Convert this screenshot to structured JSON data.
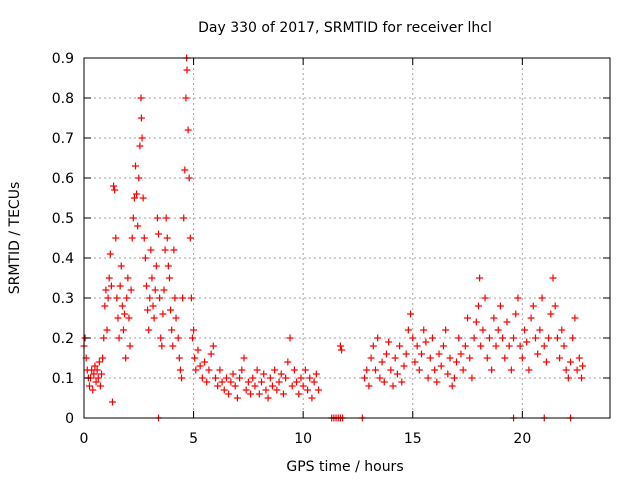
{
  "chart_data": {
    "type": "scatter",
    "title": "Day 330 of 2017, SRMTID for receiver lhcl",
    "xlabel": "GPS time / hours",
    "ylabel": "SRMTID / TECUs",
    "xlim": [
      0,
      24
    ],
    "ylim": [
      0,
      0.9
    ],
    "x_ticks": [
      0,
      5,
      10,
      15,
      20
    ],
    "x_tick_labels": [
      "0",
      "5",
      "10",
      "15",
      "20"
    ],
    "y_ticks": [
      0,
      0.1,
      0.2,
      0.3,
      0.4,
      0.5,
      0.6,
      0.7,
      0.8,
      0.9
    ],
    "y_tick_labels": [
      "0",
      "0.1",
      "0.2",
      "0.3",
      "0.4",
      "0.5",
      "0.6",
      "0.7",
      "0.8",
      "0.9"
    ],
    "grid": true,
    "marker": "+",
    "colors": {
      "marker": "#ff0000",
      "grid": "#a0a0a0",
      "axis": "#000000"
    },
    "series": [
      {
        "name": "SRMTID",
        "points": [
          [
            0.0,
            0.18
          ],
          [
            0.05,
            0.2
          ],
          [
            0.1,
            0.15
          ],
          [
            0.15,
            0.12
          ],
          [
            0.2,
            0.1
          ],
          [
            0.25,
            0.08
          ],
          [
            0.3,
            0.1
          ],
          [
            0.35,
            0.12
          ],
          [
            0.4,
            0.07
          ],
          [
            0.45,
            0.11
          ],
          [
            0.5,
            0.13
          ],
          [
            0.55,
            0.09
          ],
          [
            0.6,
            0.12
          ],
          [
            0.65,
            0.1
          ],
          [
            0.7,
            0.14
          ],
          [
            0.75,
            0.08
          ],
          [
            0.8,
            0.11
          ],
          [
            0.85,
            0.15
          ],
          [
            0.9,
            0.2
          ],
          [
            0.95,
            0.28
          ],
          [
            1.0,
            0.32
          ],
          [
            1.05,
            0.22
          ],
          [
            1.1,
            0.3
          ],
          [
            1.15,
            0.35
          ],
          [
            1.2,
            0.41
          ],
          [
            1.25,
            0.33
          ],
          [
            1.3,
            0.04
          ],
          [
            1.35,
            0.58
          ],
          [
            1.4,
            0.57
          ],
          [
            1.45,
            0.45
          ],
          [
            1.5,
            0.3
          ],
          [
            1.55,
            0.25
          ],
          [
            1.6,
            0.2
          ],
          [
            1.65,
            0.33
          ],
          [
            1.7,
            0.38
          ],
          [
            1.75,
            0.28
          ],
          [
            1.8,
            0.22
          ],
          [
            1.85,
            0.26
          ],
          [
            1.9,
            0.15
          ],
          [
            1.95,
            0.3
          ],
          [
            2.0,
            0.35
          ],
          [
            2.05,
            0.25
          ],
          [
            2.1,
            0.18
          ],
          [
            2.15,
            0.32
          ],
          [
            2.2,
            0.45
          ],
          [
            2.25,
            0.5
          ],
          [
            2.3,
            0.55
          ],
          [
            2.35,
            0.63
          ],
          [
            2.4,
            0.56
          ],
          [
            2.45,
            0.48
          ],
          [
            2.5,
            0.6
          ],
          [
            2.55,
            0.68
          ],
          [
            2.6,
            0.8
          ],
          [
            2.62,
            0.75
          ],
          [
            2.65,
            0.7
          ],
          [
            2.7,
            0.55
          ],
          [
            2.75,
            0.45
          ],
          [
            2.8,
            0.4
          ],
          [
            2.85,
            0.33
          ],
          [
            2.9,
            0.27
          ],
          [
            2.95,
            0.22
          ],
          [
            3.0,
            0.3
          ],
          [
            3.05,
            0.42
          ],
          [
            3.1,
            0.35
          ],
          [
            3.15,
            0.28
          ],
          [
            3.2,
            0.25
          ],
          [
            3.25,
            0.32
          ],
          [
            3.3,
            0.38
          ],
          [
            3.35,
            0.5
          ],
          [
            3.4,
            0.46
          ],
          [
            3.45,
            0.3
          ],
          [
            3.5,
            0.2
          ],
          [
            3.55,
            0.18
          ],
          [
            3.6,
            0.26
          ],
          [
            3.65,
            0.32
          ],
          [
            3.7,
            0.42
          ],
          [
            3.75,
            0.5
          ],
          [
            3.8,
            0.45
          ],
          [
            3.85,
            0.38
          ],
          [
            3.9,
            0.35
          ],
          [
            3.95,
            0.27
          ],
          [
            4.0,
            0.22
          ],
          [
            4.05,
            0.18
          ],
          [
            4.1,
            0.42
          ],
          [
            4.15,
            0.3
          ],
          [
            4.2,
            0.25
          ],
          [
            4.3,
            0.2
          ],
          [
            4.35,
            0.15
          ],
          [
            4.4,
            0.12
          ],
          [
            4.45,
            0.1
          ],
          [
            4.5,
            0.3
          ],
          [
            4.55,
            0.5
          ],
          [
            4.6,
            0.62
          ],
          [
            4.65,
            0.8
          ],
          [
            4.68,
            0.9
          ],
          [
            4.7,
            0.87
          ],
          [
            4.75,
            0.72
          ],
          [
            4.8,
            0.6
          ],
          [
            4.85,
            0.45
          ],
          [
            4.9,
            0.3
          ],
          [
            4.95,
            0.2
          ],
          [
            5.0,
            0.22
          ],
          [
            5.05,
            0.15
          ],
          [
            5.1,
            0.12
          ],
          [
            5.2,
            0.17
          ],
          [
            5.3,
            0.13
          ],
          [
            5.4,
            0.1
          ],
          [
            5.5,
            0.14
          ],
          [
            5.6,
            0.09
          ],
          [
            5.7,
            0.12
          ],
          [
            5.8,
            0.16
          ],
          [
            5.9,
            0.18
          ],
          [
            6.0,
            0.1
          ],
          [
            6.1,
            0.08
          ],
          [
            6.2,
            0.12
          ],
          [
            6.3,
            0.09
          ],
          [
            6.4,
            0.07
          ],
          [
            6.5,
            0.1
          ],
          [
            6.6,
            0.06
          ],
          [
            6.7,
            0.09
          ],
          [
            6.8,
            0.11
          ],
          [
            6.9,
            0.08
          ],
          [
            7.0,
            0.05
          ],
          [
            7.1,
            0.1
          ],
          [
            7.2,
            0.12
          ],
          [
            7.3,
            0.15
          ],
          [
            7.4,
            0.07
          ],
          [
            7.5,
            0.09
          ],
          [
            7.6,
            0.06
          ],
          [
            7.7,
            0.1
          ],
          [
            7.8,
            0.08
          ],
          [
            7.9,
            0.12
          ],
          [
            8.0,
            0.06
          ],
          [
            8.1,
            0.09
          ],
          [
            8.2,
            0.11
          ],
          [
            8.3,
            0.07
          ],
          [
            8.4,
            0.05
          ],
          [
            8.5,
            0.1
          ],
          [
            8.6,
            0.08
          ],
          [
            8.7,
            0.12
          ],
          [
            8.8,
            0.07
          ],
          [
            8.9,
            0.09
          ],
          [
            9.0,
            0.11
          ],
          [
            9.1,
            0.06
          ],
          [
            9.2,
            0.1
          ],
          [
            9.3,
            0.14
          ],
          [
            9.4,
            0.2
          ],
          [
            9.5,
            0.08
          ],
          [
            9.6,
            0.12
          ],
          [
            9.7,
            0.09
          ],
          [
            9.8,
            0.06
          ],
          [
            9.9,
            0.1
          ],
          [
            10.0,
            0.08
          ],
          [
            10.1,
            0.12
          ],
          [
            10.2,
            0.07
          ],
          [
            10.3,
            0.1
          ],
          [
            10.4,
            0.05
          ],
          [
            10.5,
            0.09
          ],
          [
            10.6,
            0.11
          ],
          [
            10.7,
            0.07
          ],
          [
            11.7,
            0.18
          ],
          [
            11.75,
            0.17
          ],
          [
            12.8,
            0.1
          ],
          [
            12.9,
            0.12
          ],
          [
            13.0,
            0.08
          ],
          [
            13.1,
            0.15
          ],
          [
            13.2,
            0.18
          ],
          [
            13.3,
            0.12
          ],
          [
            13.4,
            0.2
          ],
          [
            13.5,
            0.1
          ],
          [
            13.6,
            0.14
          ],
          [
            13.7,
            0.09
          ],
          [
            13.8,
            0.16
          ],
          [
            13.9,
            0.19
          ],
          [
            14.0,
            0.12
          ],
          [
            14.1,
            0.08
          ],
          [
            14.2,
            0.15
          ],
          [
            14.3,
            0.11
          ],
          [
            14.4,
            0.18
          ],
          [
            14.5,
            0.09
          ],
          [
            14.6,
            0.13
          ],
          [
            14.7,
            0.16
          ],
          [
            14.8,
            0.22
          ],
          [
            14.9,
            0.26
          ],
          [
            15.0,
            0.2
          ],
          [
            15.1,
            0.14
          ],
          [
            15.2,
            0.18
          ],
          [
            15.3,
            0.12
          ],
          [
            15.4,
            0.16
          ],
          [
            15.5,
            0.22
          ],
          [
            15.6,
            0.19
          ],
          [
            15.7,
            0.1
          ],
          [
            15.8,
            0.15
          ],
          [
            15.9,
            0.2
          ],
          [
            16.0,
            0.12
          ],
          [
            16.1,
            0.09
          ],
          [
            16.2,
            0.16
          ],
          [
            16.3,
            0.13
          ],
          [
            16.4,
            0.18
          ],
          [
            16.5,
            0.22
          ],
          [
            16.6,
            0.11
          ],
          [
            16.7,
            0.15
          ],
          [
            16.8,
            0.08
          ],
          [
            16.9,
            0.1
          ],
          [
            17.0,
            0.14
          ],
          [
            17.1,
            0.2
          ],
          [
            17.2,
            0.16
          ],
          [
            17.3,
            0.12
          ],
          [
            17.4,
            0.18
          ],
          [
            17.5,
            0.25
          ],
          [
            17.6,
            0.15
          ],
          [
            17.7,
            0.1
          ],
          [
            17.8,
            0.2
          ],
          [
            17.9,
            0.24
          ],
          [
            18.0,
            0.28
          ],
          [
            18.05,
            0.35
          ],
          [
            18.1,
            0.18
          ],
          [
            18.2,
            0.22
          ],
          [
            18.3,
            0.3
          ],
          [
            18.4,
            0.15
          ],
          [
            18.5,
            0.2
          ],
          [
            18.6,
            0.12
          ],
          [
            18.7,
            0.25
          ],
          [
            18.8,
            0.18
          ],
          [
            18.9,
            0.22
          ],
          [
            19.0,
            0.28
          ],
          [
            19.1,
            0.2
          ],
          [
            19.2,
            0.15
          ],
          [
            19.3,
            0.24
          ],
          [
            19.4,
            0.18
          ],
          [
            19.5,
            0.12
          ],
          [
            19.6,
            0.2
          ],
          [
            19.7,
            0.26
          ],
          [
            19.8,
            0.3
          ],
          [
            19.9,
            0.18
          ],
          [
            20.0,
            0.15
          ],
          [
            20.1,
            0.22
          ],
          [
            20.2,
            0.19
          ],
          [
            20.3,
            0.12
          ],
          [
            20.4,
            0.25
          ],
          [
            20.5,
            0.28
          ],
          [
            20.6,
            0.2
          ],
          [
            20.7,
            0.16
          ],
          [
            20.8,
            0.22
          ],
          [
            20.9,
            0.3
          ],
          [
            21.0,
            0.18
          ],
          [
            21.1,
            0.14
          ],
          [
            21.2,
            0.2
          ],
          [
            21.3,
            0.26
          ],
          [
            21.4,
            0.35
          ],
          [
            21.5,
            0.28
          ],
          [
            21.6,
            0.2
          ],
          [
            21.7,
            0.15
          ],
          [
            21.8,
            0.22
          ],
          [
            21.9,
            0.18
          ],
          [
            22.0,
            0.12
          ],
          [
            22.1,
            0.1
          ],
          [
            22.2,
            0.14
          ],
          [
            22.3,
            0.2
          ],
          [
            22.4,
            0.25
          ],
          [
            22.5,
            0.12
          ],
          [
            22.6,
            0.15
          ],
          [
            22.7,
            0.1
          ],
          [
            22.75,
            0.13
          ],
          [
            3.4,
            0.0
          ],
          [
            11.3,
            0.0
          ],
          [
            11.4,
            0.0
          ],
          [
            11.5,
            0.0
          ],
          [
            11.6,
            0.0
          ],
          [
            11.7,
            0.0
          ],
          [
            11.8,
            0.0
          ],
          [
            12.7,
            0.0
          ],
          [
            19.6,
            0.0
          ],
          [
            21.0,
            0.0
          ],
          [
            22.2,
            0.0
          ]
        ]
      }
    ]
  }
}
